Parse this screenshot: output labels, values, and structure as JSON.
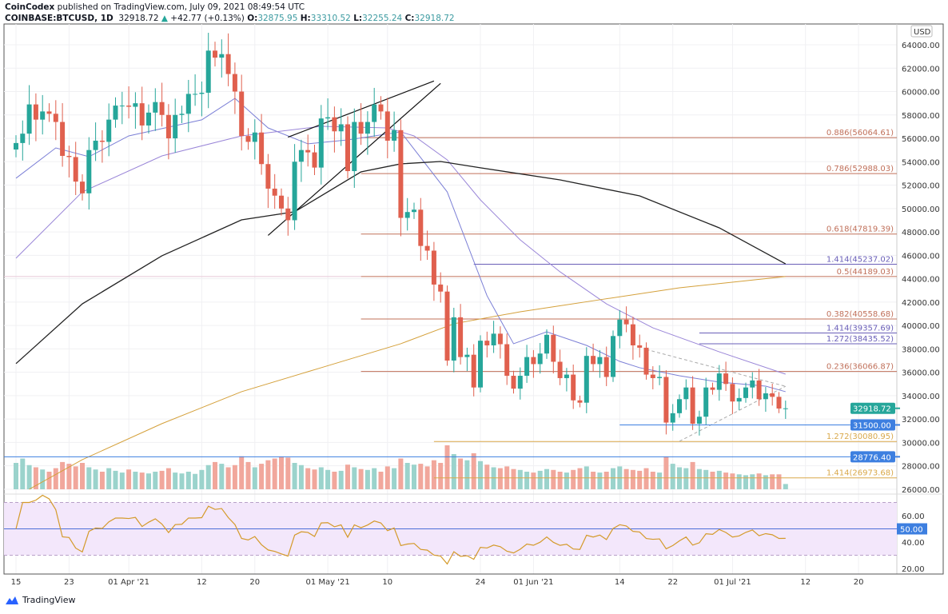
{
  "header": {
    "publisher": "CoinCodex",
    "published_text": "published on TradingView.com, July 09, 2021 08:49:54 UTC",
    "symbol": "COINBASE:BTCUSD, 1D",
    "last": "32918.72",
    "change": "+42.77 (+0.13%)",
    "o_label": "O:",
    "o": "32875.95",
    "h_label": "H:",
    "h": "33310.52",
    "l_label": "L:",
    "l": "32255.24",
    "c_label": "C:",
    "c": "32918.72"
  },
  "footer": {
    "brand": "TradingView"
  },
  "colors": {
    "up": "#26a69a",
    "down": "#e0604e",
    "ma20": "#7b7fd6",
    "ma50": "#9a86d8",
    "ma100": "#222222",
    "ma200": "#d4a03a",
    "fib": "#c0705a",
    "ext": "#6a5fb8",
    "ext_orange": "#d9a84a",
    "level": "#4d7fd8"
  },
  "chart_data": {
    "type": "candlestick",
    "currency": "USD",
    "price_range": [
      25500,
      65000
    ],
    "y_ticks": [
      "64000.00",
      "62000.00",
      "60000.00",
      "58000.00",
      "56000.00",
      "54000.00",
      "52000.00",
      "50000.00",
      "48000.00",
      "46000.00",
      "44000.00",
      "42000.00",
      "40000.00",
      "38000.00",
      "36000.00",
      "34000.00",
      "32000.00",
      "30000.00",
      "28000.00",
      "26000.00"
    ],
    "x_ticks": [
      {
        "day": 0,
        "label": "15"
      },
      {
        "day": 8,
        "label": "23"
      },
      {
        "day": 17,
        "label": "01 Apr '21"
      },
      {
        "day": 28,
        "label": "12"
      },
      {
        "day": 36,
        "label": "20"
      },
      {
        "day": 47,
        "label": "01 May '21"
      },
      {
        "day": 56,
        "label": "10"
      },
      {
        "day": 70,
        "label": "24"
      },
      {
        "day": 78,
        "label": "01 Jun '21"
      },
      {
        "day": 91,
        "label": "14"
      },
      {
        "day": 99,
        "label": "22"
      },
      {
        "day": 108,
        "label": "01 Jul '21"
      },
      {
        "day": 119,
        "label": "12"
      },
      {
        "day": 127,
        "label": "20"
      }
    ],
    "closes": [
      55600,
      56400,
      58900,
      57600,
      58300,
      58100,
      57400,
      54500,
      54400,
      52300,
      51300,
      55000,
      55800,
      55700,
      57600,
      58800,
      58800,
      58700,
      59000,
      57100,
      58200,
      59100,
      58000,
      56000,
      58000,
      58100,
      59800,
      59800,
      59900,
      63500,
      62900,
      63200,
      61500,
      60000,
      56200,
      55700,
      56500,
      53800,
      51700,
      51100,
      50000,
      49000,
      54000,
      55000,
      54800,
      53500,
      57700,
      57800,
      56600,
      57200,
      53200,
      57400,
      56400,
      57400,
      58900,
      58300,
      55800,
      56700,
      49200,
      49700,
      49900,
      46800,
      46400,
      43500,
      42900,
      37000,
      40700,
      37300,
      37500,
      34700,
      38700,
      38300,
      39300,
      38400,
      35700,
      34600,
      35700,
      37300,
      36700,
      37600,
      39200,
      36900,
      35500,
      35800,
      33600,
      33400,
      37400,
      36700,
      37300,
      35600,
      39100,
      40500,
      40100,
      38300,
      38100,
      35800,
      35500,
      35600,
      31700,
      32500,
      33700,
      34700,
      31600,
      32200,
      34700,
      34500,
      35900,
      35000,
      33500,
      33800,
      34700,
      35300,
      33700,
      34200,
      33900,
      32900,
      32918.72
    ],
    "volume_relative": [
      60,
      70,
      55,
      50,
      45,
      40,
      48,
      62,
      58,
      52,
      60,
      50,
      45,
      40,
      48,
      42,
      38,
      45,
      40,
      38,
      36,
      40,
      42,
      48,
      38,
      36,
      40,
      35,
      44,
      55,
      62,
      58,
      50,
      55,
      75,
      62,
      50,
      58,
      66,
      70,
      74,
      72,
      60,
      55,
      48,
      45,
      50,
      44,
      40,
      42,
      56,
      50,
      46,
      44,
      48,
      40,
      52,
      48,
      70,
      60,
      56,
      58,
      52,
      66,
      60,
      100,
      80,
      70,
      66,
      82,
      64,
      56,
      50,
      48,
      52,
      46,
      44,
      40,
      38,
      42,
      46,
      44,
      40,
      38,
      44,
      48,
      52,
      40,
      38,
      40,
      48,
      52,
      46,
      44,
      42,
      48,
      40,
      38,
      74,
      58,
      50,
      48,
      62,
      46,
      44,
      40,
      42,
      38,
      36,
      34,
      32,
      34,
      36,
      32,
      34,
      34,
      12
    ],
    "ma_lines": [
      {
        "name": "MA20",
        "color_key": "ma20",
        "points": [
          [
            0,
            52590
          ],
          [
            6,
            55180
          ],
          [
            11,
            54430
          ],
          [
            17,
            56210
          ],
          [
            28,
            57580
          ],
          [
            33,
            59420
          ],
          [
            38,
            56890
          ],
          [
            44,
            55530
          ],
          [
            50,
            55870
          ],
          [
            58,
            56550
          ],
          [
            65,
            51420
          ],
          [
            71,
            42540
          ],
          [
            75,
            38440
          ],
          [
            80,
            39460
          ],
          [
            86,
            38300
          ],
          [
            91,
            36930
          ],
          [
            94,
            36390
          ],
          [
            100,
            35700
          ],
          [
            106,
            35160
          ],
          [
            113,
            34810
          ],
          [
            116,
            34340
          ]
        ]
      },
      {
        "name": "MA50",
        "color_key": "ma50",
        "points": [
          [
            0,
            45750
          ],
          [
            10,
            51420
          ],
          [
            22,
            54500
          ],
          [
            34,
            56210
          ],
          [
            46,
            57030
          ],
          [
            56,
            56890
          ],
          [
            60,
            56210
          ],
          [
            65,
            54160
          ],
          [
            70,
            50740
          ],
          [
            76,
            47320
          ],
          [
            82,
            44590
          ],
          [
            89,
            41850
          ],
          [
            96,
            39800
          ],
          [
            106,
            37750
          ],
          [
            116,
            35840
          ]
        ]
      },
      {
        "name": "MA100",
        "color_key": "ma100",
        "points": [
          [
            0,
            36740
          ],
          [
            10,
            41850
          ],
          [
            22,
            45960
          ],
          [
            34,
            49030
          ],
          [
            42,
            49720
          ],
          [
            52,
            53130
          ],
          [
            58,
            53820
          ],
          [
            64,
            54020
          ],
          [
            70,
            53480
          ],
          [
            82,
            52450
          ],
          [
            94,
            51080
          ],
          [
            106,
            48350
          ],
          [
            116,
            45270
          ]
        ]
      },
      {
        "name": "MA200",
        "color_key": "ma200",
        "points": [
          [
            2,
            26000
          ],
          [
            10,
            28530
          ],
          [
            22,
            31610
          ],
          [
            34,
            34340
          ],
          [
            46,
            36390
          ],
          [
            58,
            38440
          ],
          [
            66,
            40150
          ],
          [
            76,
            41170
          ],
          [
            88,
            42200
          ],
          [
            100,
            43220
          ],
          [
            116,
            44190
          ]
        ]
      }
    ],
    "levels": [
      {
        "label": "0.886(56064.61)",
        "price": 56064.61,
        "from_day": 52,
        "color_key": "fib"
      },
      {
        "label": "0.786(52988.03)",
        "price": 52988.03,
        "from_day": 52,
        "color_key": "fib"
      },
      {
        "label": "0.618(47819.39)",
        "price": 47819.39,
        "from_day": 52,
        "color_key": "fib"
      },
      {
        "label": "1.414(45237.02)",
        "price": 45237.02,
        "from_day": 69,
        "color_key": "ext"
      },
      {
        "label": "0.5(44189.03)",
        "price": 44189.03,
        "from_day": 52,
        "color_key": "fib"
      },
      {
        "label": "0.382(40558.68)",
        "price": 40558.68,
        "from_day": 52,
        "color_key": "fib"
      },
      {
        "label": "1.414(39357.69)",
        "price": 39357.69,
        "from_day": 103,
        "color_key": "ext"
      },
      {
        "label": "1.272(38435.52)",
        "price": 38435.52,
        "from_day": 103,
        "color_key": "ext"
      },
      {
        "label": "0.236(36066.87)",
        "price": 36066.87,
        "from_day": 52,
        "color_key": "fib"
      },
      {
        "label": "1.272(30080.95)",
        "price": 30080.95,
        "from_day": 63,
        "color_key": "ext_orange"
      },
      {
        "label": "1.414(26973.68)",
        "price": 26973.68,
        "from_day": 63,
        "color_key": "ext_orange"
      }
    ],
    "axis_badges": [
      {
        "label": "32918.72",
        "price": 32918.72,
        "color": "#26a69a"
      },
      {
        "label": "31500.00",
        "price": 31500,
        "color": "#3d7fe0",
        "line_from_day": 91
      },
      {
        "label": "28776.40",
        "price": 28776.4,
        "color": "#3d7fe0",
        "line_from_day": -3
      }
    ],
    "trendlines": [
      {
        "from": [
          38,
          47700
        ],
        "to": [
          64,
          60700
        ]
      },
      {
        "from": [
          41,
          56100
        ],
        "to": [
          63,
          60900
        ]
      }
    ],
    "triangle": [
      {
        "from": [
          95,
          37950
        ],
        "to": [
          116,
          34800
        ]
      },
      {
        "from": [
          100,
          30100
        ],
        "to": [
          116,
          34800
        ]
      }
    ],
    "rsi": {
      "period": 14,
      "ticks": [
        "60.00",
        "40.00",
        "20.00"
      ],
      "badge": "50.00",
      "upper": 70,
      "lower": 30,
      "range": [
        15,
        75
      ]
    }
  }
}
